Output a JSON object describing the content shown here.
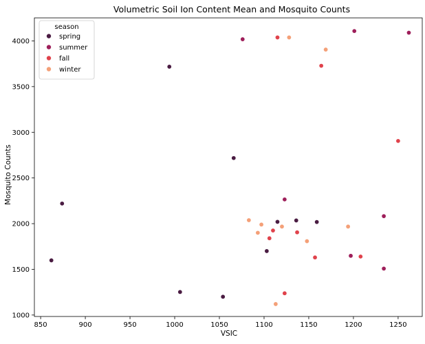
{
  "chart_data": {
    "type": "scatter",
    "title": "Volumetric Soil Ion Content Mean and Mosquito Counts",
    "xlabel": "VSIC",
    "ylabel": "Mosquito Counts",
    "xlim": [
      843,
      1277
    ],
    "ylim": [
      984,
      4252
    ],
    "xticks": [
      850,
      900,
      950,
      1000,
      1050,
      1100,
      1150,
      1200,
      1250
    ],
    "yticks": [
      1000,
      1500,
      2000,
      2500,
      3000,
      3500,
      4000
    ],
    "grid": false,
    "legend": {
      "title": "season",
      "placement": "top-left"
    },
    "series": [
      {
        "name": "spring",
        "color": "#4a1c42",
        "points": [
          [
            862,
            1598
          ],
          [
            874,
            2220
          ],
          [
            994,
            3718
          ],
          [
            1006,
            1252
          ],
          [
            1054,
            1200
          ],
          [
            1066,
            2718
          ],
          [
            1103,
            1700
          ],
          [
            1115,
            2020
          ],
          [
            1136,
            2035
          ],
          [
            1159,
            2018
          ]
        ]
      },
      {
        "name": "summer",
        "color": "#9e1f5a",
        "points": [
          [
            1076,
            4018
          ],
          [
            1123,
            2265
          ],
          [
            1197,
            1648
          ],
          [
            1201,
            4108
          ],
          [
            1234,
            2082
          ],
          [
            1234,
            1508
          ],
          [
            1262,
            4090
          ]
        ]
      },
      {
        "name": "fall",
        "color": "#e0424b",
        "points": [
          [
            1106,
            1840
          ],
          [
            1110,
            1925
          ],
          [
            1115,
            4038
          ],
          [
            1123,
            1238
          ],
          [
            1137,
            1905
          ],
          [
            1157,
            1630
          ],
          [
            1164,
            3728
          ],
          [
            1208,
            1640
          ],
          [
            1250,
            2905
          ]
        ]
      },
      {
        "name": "winter",
        "color": "#f4a078",
        "points": [
          [
            1083,
            2038
          ],
          [
            1093,
            1900
          ],
          [
            1097,
            1990
          ],
          [
            1113,
            1120
          ],
          [
            1120,
            1968
          ],
          [
            1128,
            4038
          ],
          [
            1148,
            1808
          ],
          [
            1169,
            3905
          ],
          [
            1194,
            1968
          ]
        ]
      }
    ]
  }
}
